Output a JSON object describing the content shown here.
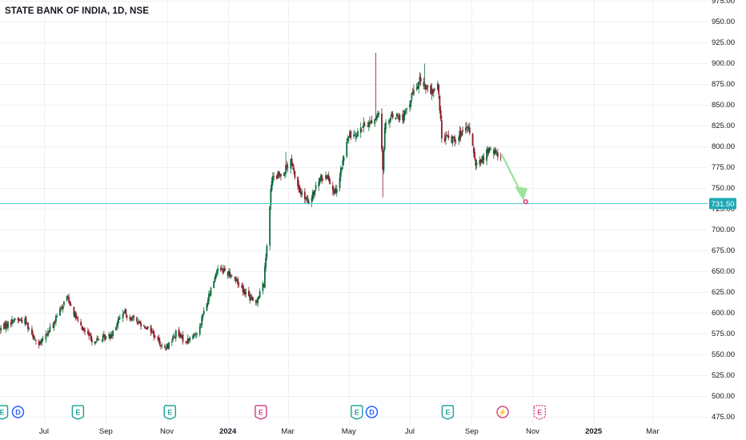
{
  "chart_data": {
    "type": "candlestick",
    "title": "STATE BANK OF INDIA, 1D, NSE",
    "colors": {
      "up": "#0b6b3a",
      "down": "#8a1c2b",
      "hline": "#4dc9d6",
      "price_badge": "#1ea8b4",
      "arrow": "#9be39b",
      "grid": "#eef0f3",
      "event_green": "#26a69a",
      "event_pink": "#d44c8a",
      "event_blue": "#2962ff"
    },
    "ylim": [
      475,
      975
    ],
    "y_ticks": [
      "975.00",
      "950.00",
      "925.00",
      "900.00",
      "875.00",
      "850.00",
      "825.00",
      "800.00",
      "775.00",
      "750.00",
      "725.00",
      "700.00",
      "675.00",
      "650.00",
      "625.00",
      "600.00",
      "575.00",
      "550.00",
      "525.00",
      "500.00",
      "475.00"
    ],
    "y_tick_values": [
      975,
      950,
      925,
      900,
      875,
      850,
      825,
      800,
      775,
      750,
      725,
      700,
      675,
      650,
      625,
      600,
      575,
      550,
      525,
      500,
      475
    ],
    "x_ticks": [
      "Jul",
      "Sep",
      "Nov",
      "2024",
      "Mar",
      "May",
      "Jul",
      "Sep",
      "Nov",
      "2025",
      "Mar"
    ],
    "x_tick_dates": [
      "2023-07-01",
      "2023-09-01",
      "2023-11-01",
      "2024-01-01",
      "2024-03-01",
      "2024-05-01",
      "2024-07-01",
      "2024-09-01",
      "2024-11-01",
      "2025-01-01",
      "2025-03-01"
    ],
    "x_tick_bold": [
      false,
      false,
      false,
      true,
      false,
      false,
      false,
      false,
      false,
      true,
      false
    ],
    "x_range": [
      "2023-05-18",
      "2025-04-25"
    ],
    "horizontal_line": {
      "value": 731.5,
      "label": "731.50"
    },
    "projection_arrow": {
      "from": [
        "2024-10-01",
        790
      ],
      "to": [
        "2024-10-22",
        734
      ]
    },
    "target_marker": [
      "2024-10-25",
      733
    ],
    "events": [
      {
        "date": "2023-05-20",
        "icon": "E",
        "kind": "earnings"
      },
      {
        "date": "2023-06-05",
        "icon": "D",
        "kind": "dividend"
      },
      {
        "date": "2023-08-04",
        "icon": "E",
        "kind": "earnings"
      },
      {
        "date": "2023-11-04",
        "icon": "E",
        "kind": "earnings"
      },
      {
        "date": "2024-02-03",
        "icon": "E",
        "kind": "earnings-pink"
      },
      {
        "date": "2024-05-09",
        "icon": "E",
        "kind": "earnings"
      },
      {
        "date": "2024-05-24",
        "icon": "D",
        "kind": "dividend"
      },
      {
        "date": "2024-08-08",
        "icon": "E",
        "kind": "earnings"
      },
      {
        "date": "2024-10-02",
        "icon": "⚡",
        "kind": "lightning"
      },
      {
        "date": "2024-11-08",
        "icon": "E",
        "kind": "earnings-pink-upcoming"
      }
    ],
    "anchors": [
      [
        "2023-05-18",
        580
      ],
      [
        "2023-06-02",
        592
      ],
      [
        "2023-06-12",
        590
      ],
      [
        "2023-06-26",
        560
      ],
      [
        "2023-07-10",
        585
      ],
      [
        "2023-07-24",
        620
      ],
      [
        "2023-08-05",
        585
      ],
      [
        "2023-08-20",
        565
      ],
      [
        "2023-09-05",
        572
      ],
      [
        "2023-09-18",
        600
      ],
      [
        "2023-10-01",
        590
      ],
      [
        "2023-10-15",
        580
      ],
      [
        "2023-10-30",
        555
      ],
      [
        "2023-11-10",
        575
      ],
      [
        "2023-11-20",
        565
      ],
      [
        "2023-12-01",
        575
      ],
      [
        "2023-12-12",
        615
      ],
      [
        "2023-12-22",
        655
      ],
      [
        "2024-01-05",
        645
      ],
      [
        "2024-01-18",
        625
      ],
      [
        "2024-01-28",
        610
      ],
      [
        "2024-02-06",
        635
      ],
      [
        "2024-02-10",
        700
      ],
      [
        "2024-02-14",
        760
      ],
      [
        "2024-02-22",
        765
      ],
      [
        "2024-03-04",
        780
      ],
      [
        "2024-03-13",
        745
      ],
      [
        "2024-03-22",
        730
      ],
      [
        "2024-04-02",
        760
      ],
      [
        "2024-04-10",
        765
      ],
      [
        "2024-04-18",
        740
      ],
      [
        "2024-04-30",
        810
      ],
      [
        "2024-05-10",
        818
      ],
      [
        "2024-05-24",
        830
      ],
      [
        "2024-06-01",
        838
      ],
      [
        "2024-06-04",
        770
      ],
      [
        "2024-06-06",
        825
      ],
      [
        "2024-06-14",
        838
      ],
      [
        "2024-06-24",
        832
      ],
      [
        "2024-07-03",
        860
      ],
      [
        "2024-07-12",
        880
      ],
      [
        "2024-07-22",
        862
      ],
      [
        "2024-07-29",
        875
      ],
      [
        "2024-08-02",
        812
      ],
      [
        "2024-08-12",
        808
      ],
      [
        "2024-08-22",
        815
      ],
      [
        "2024-08-30",
        820
      ],
      [
        "2024-09-05",
        775
      ],
      [
        "2024-09-12",
        785
      ],
      [
        "2024-09-18",
        795
      ],
      [
        "2024-09-30",
        788
      ]
    ],
    "spikes": [
      {
        "date": "2024-05-28",
        "high": 912
      },
      {
        "date": "2024-06-04",
        "low": 738
      },
      {
        "date": "2024-07-16",
        "high": 899
      },
      {
        "date": "2024-02-28",
        "high": 793
      },
      {
        "date": "2023-11-12",
        "low": 545
      }
    ]
  }
}
